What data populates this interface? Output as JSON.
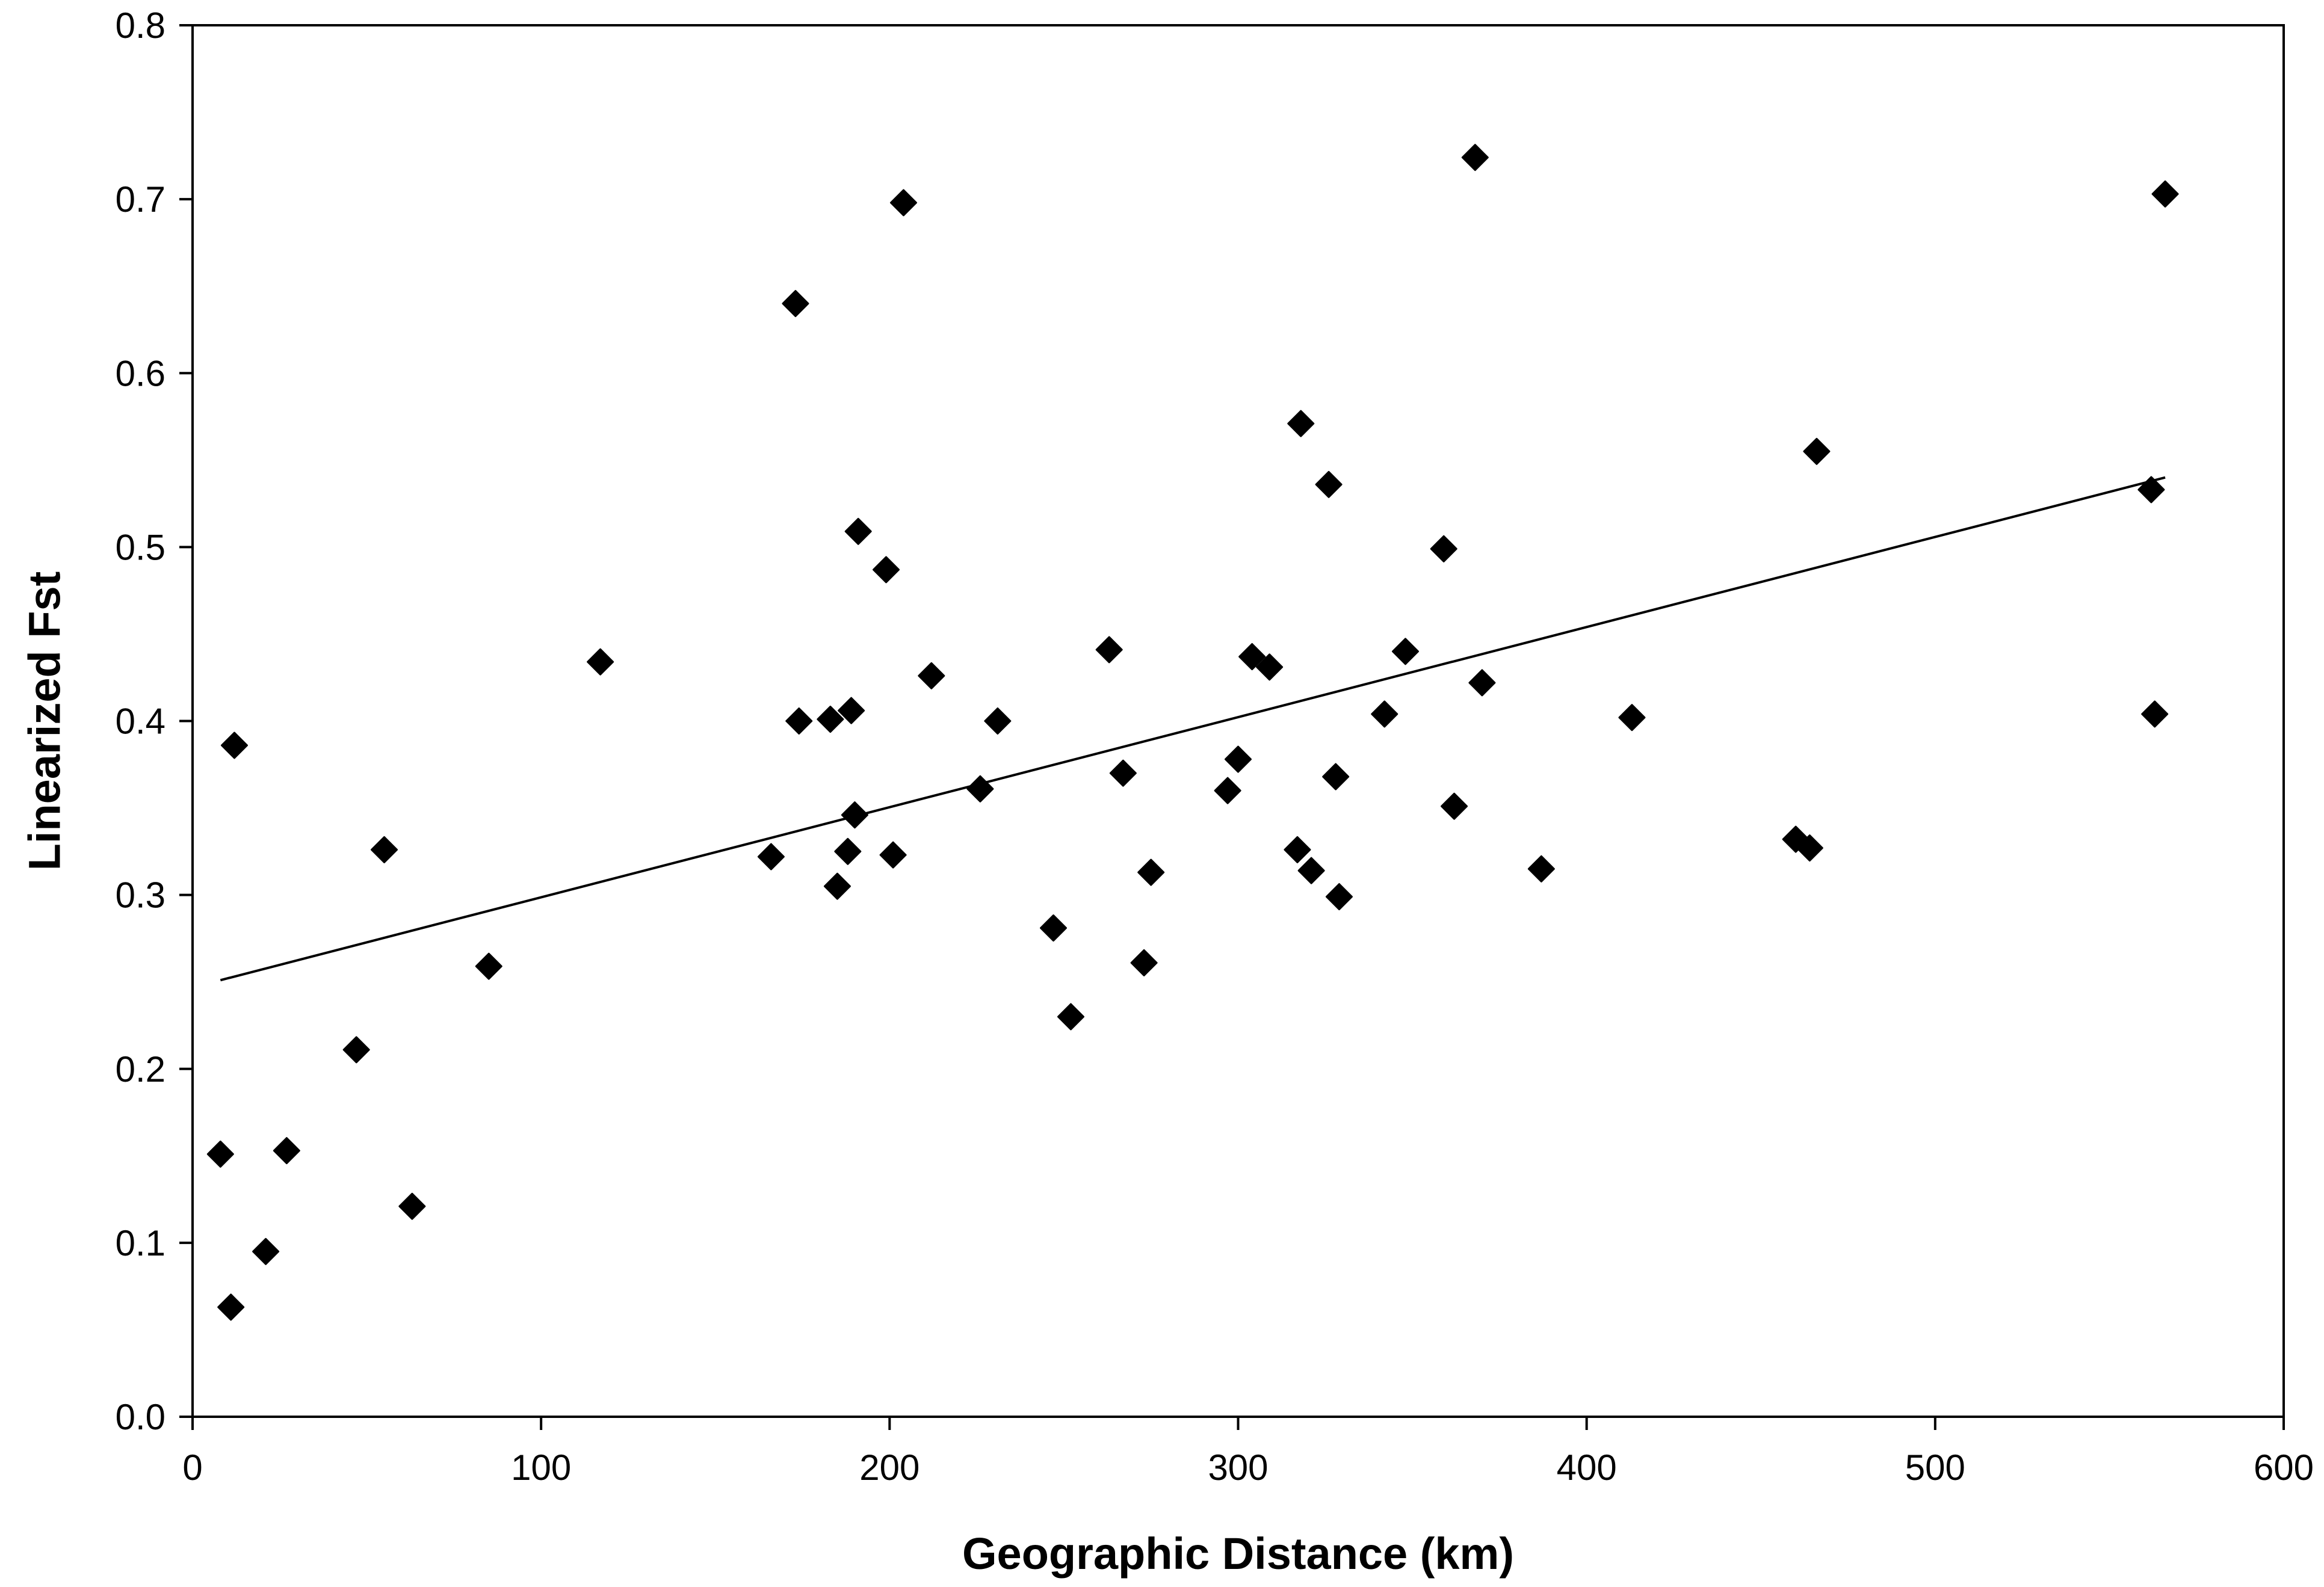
{
  "chart_data": {
    "type": "scatter",
    "title": "",
    "xlabel": "Geographic Distance (km)",
    "ylabel": "Linearized Fst",
    "xlim": [
      0,
      600
    ],
    "ylim": [
      0.0,
      0.8
    ],
    "x_ticks": [
      0,
      100,
      200,
      300,
      400,
      500,
      600
    ],
    "x_tick_labels": [
      "0",
      "100",
      "200",
      "300",
      "400",
      "500",
      "600"
    ],
    "y_ticks": [
      0.0,
      0.1,
      0.2,
      0.3,
      0.4,
      0.5,
      0.6,
      0.7,
      0.8
    ],
    "y_tick_labels": [
      "0.0",
      "0.1",
      "0.2",
      "0.3",
      "0.4",
      "0.5",
      "0.6",
      "0.7",
      "0.8"
    ],
    "grid": false,
    "legend": "none",
    "marker": "diamond",
    "marker_color": "#000000",
    "line_color": "#000000",
    "series": [
      {
        "points": [
          [
            8,
            0.151
          ],
          [
            11,
            0.063
          ],
          [
            12,
            0.386
          ],
          [
            21,
            0.095
          ],
          [
            27,
            0.153
          ],
          [
            47,
            0.211
          ],
          [
            55,
            0.326
          ],
          [
            63,
            0.121
          ],
          [
            85,
            0.259
          ],
          [
            117,
            0.434
          ],
          [
            166,
            0.322
          ],
          [
            173,
            0.64
          ],
          [
            174,
            0.4
          ],
          [
            183,
            0.401
          ],
          [
            185,
            0.305
          ],
          [
            188,
            0.325
          ],
          [
            189,
            0.406
          ],
          [
            190,
            0.346
          ],
          [
            191,
            0.509
          ],
          [
            199,
            0.487
          ],
          [
            201,
            0.323
          ],
          [
            204,
            0.698
          ],
          [
            212,
            0.426
          ],
          [
            226,
            0.361
          ],
          [
            231,
            0.4
          ],
          [
            247,
            0.281
          ],
          [
            252,
            0.23
          ],
          [
            263,
            0.441
          ],
          [
            267,
            0.37
          ],
          [
            273,
            0.261
          ],
          [
            275,
            0.313
          ],
          [
            297,
            0.36
          ],
          [
            300,
            0.378
          ],
          [
            304,
            0.437
          ],
          [
            309,
            0.431
          ],
          [
            317,
            0.326
          ],
          [
            318,
            0.571
          ],
          [
            321,
            0.314
          ],
          [
            326,
            0.536
          ],
          [
            328,
            0.368
          ],
          [
            329,
            0.299
          ],
          [
            342,
            0.404
          ],
          [
            348,
            0.44
          ],
          [
            359,
            0.499
          ],
          [
            362,
            0.351
          ],
          [
            368,
            0.724
          ],
          [
            370,
            0.422
          ],
          [
            387,
            0.315
          ],
          [
            413,
            0.402
          ],
          [
            460,
            0.332
          ],
          [
            464,
            0.327
          ],
          [
            466,
            0.555
          ],
          [
            562,
            0.533
          ],
          [
            563,
            0.404
          ],
          [
            566,
            0.703
          ]
        ]
      }
    ],
    "trendline": {
      "type": "linear",
      "x": [
        8,
        566
      ],
      "y": [
        0.251,
        0.54
      ]
    }
  }
}
